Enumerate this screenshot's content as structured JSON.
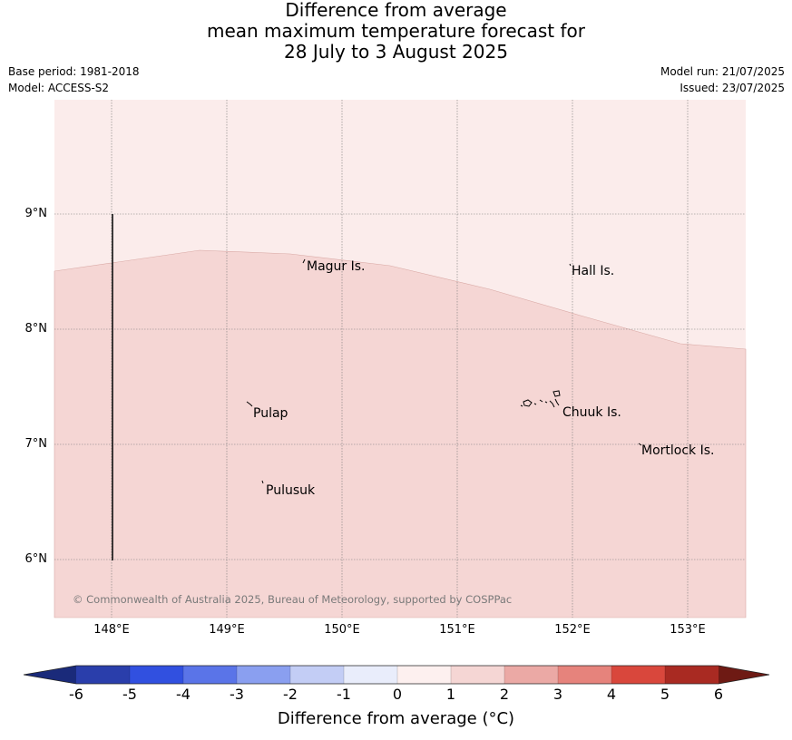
{
  "title": {
    "line1": "Difference from average",
    "line2": "mean maximum temperature forecast for",
    "line3": "28 July to 3 August 2025"
  },
  "meta": {
    "base_period": "Base period: 1981-2018",
    "model": "Model: ACCESS-S2",
    "model_run": "Model run: 21/07/2025",
    "issued": "Issued: 23/07/2025"
  },
  "map": {
    "lon_range": [
      147.5,
      153.5
    ],
    "lat_range": [
      5.5,
      10.0
    ],
    "lat_ticks": [
      "9°N",
      "8°N",
      "7°N",
      "6°N"
    ],
    "lon_ticks": [
      "148°E",
      "149°E",
      "150°E",
      "151°E",
      "152°E",
      "153°E"
    ],
    "zones": [
      {
        "name": "0 to 1",
        "color": "#fbeceb"
      },
      {
        "name": "1 to 2",
        "color": "#f5d6d4"
      }
    ],
    "places": [
      {
        "name": "Magur Is."
      },
      {
        "name": "Hall Is."
      },
      {
        "name": "Pulap"
      },
      {
        "name": "Chuuk Is."
      },
      {
        "name": "Mortlock Is."
      },
      {
        "name": "Pulusuk"
      }
    ],
    "copyright": "© Commonwealth of Australia 2025, Bureau of Meteorology, supported by COSPPac"
  },
  "colorbar": {
    "title": "Difference from average (°C)",
    "labels": [
      "-6",
      "-5",
      "-4",
      "-3",
      "-2",
      "-1",
      "0",
      "1",
      "2",
      "3",
      "4",
      "5",
      "6"
    ],
    "colors": [
      "#2a3eab",
      "#3150e0",
      "#5a74e8",
      "#8a9ff0",
      "#c3cdf5",
      "#e9edfb",
      "#fdf0ef",
      "#f5d6d4",
      "#eba9a5",
      "#e6837c",
      "#d9473c",
      "#a92a22"
    ],
    "low_extend_color": "#1a2a7a",
    "high_extend_color": "#6e1a14"
  }
}
